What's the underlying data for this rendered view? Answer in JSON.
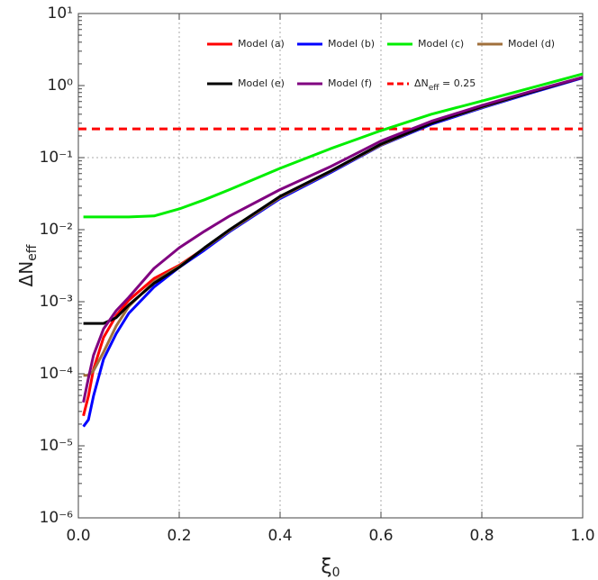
{
  "chart_data": {
    "type": "line",
    "log_y": true,
    "x_label": {
      "main": "ξ",
      "sub": "0"
    },
    "y_label": {
      "main": "ΔN",
      "sub": "eff"
    },
    "xlim": [
      0,
      1
    ],
    "ylim": [
      1e-06,
      10
    ],
    "xticks": [
      {
        "value": 0,
        "label": "0.0"
      },
      0.2,
      0.4,
      0.6,
      0.8,
      {
        "value": 1,
        "label": "1.0"
      }
    ],
    "yticks": [
      {
        "value": 1e-06,
        "label": "10⁻⁶"
      },
      {
        "value": 1e-05,
        "label": "10⁻⁵"
      },
      {
        "value": 0.0001,
        "label": "10⁻⁴"
      },
      {
        "value": 0.001,
        "label": "10⁻³"
      },
      {
        "value": 0.01,
        "label": "10⁻²"
      },
      {
        "value": 0.1,
        "label": "10⁻¹"
      },
      {
        "value": 1,
        "label": "10⁰"
      },
      {
        "value": 10,
        "label": "10¹"
      }
    ],
    "grid_x": [
      0.2,
      0.4,
      0.6,
      0.8
    ],
    "grid_y": [
      0.1,
      0.0001
    ],
    "legend": "top",
    "x": [
      0.01,
      0.02,
      0.03,
      0.05,
      0.075,
      0.1,
      0.15,
      0.2,
      0.25,
      0.3,
      0.4,
      0.5,
      0.6,
      0.7,
      0.8,
      0.9,
      1.0
    ],
    "series": [
      {
        "name": "Model (a)",
        "color": "#ff0000",
        "values": [
          2.6e-05,
          4.9e-05,
          0.000115,
          0.00032,
          0.00064,
          0.00105,
          0.0021,
          0.0032,
          0.0055,
          0.0098,
          0.028,
          0.064,
          0.15,
          0.3,
          0.5,
          0.82,
          1.3
        ]
      },
      {
        "name": "Model (b)",
        "color": "#0000ff",
        "values": [
          1.85e-05,
          2.3e-05,
          4.9e-05,
          0.00016,
          0.00036,
          0.00069,
          0.0016,
          0.003,
          0.0052,
          0.0094,
          0.027,
          0.062,
          0.148,
          0.29,
          0.49,
          0.8,
          1.28
        ]
      },
      {
        "name": "Model (c)",
        "color": "#00ee00",
        "values": [
          0.015,
          0.015,
          0.015,
          0.015,
          0.015,
          0.015,
          0.0155,
          0.0194,
          0.026,
          0.036,
          0.071,
          0.133,
          0.237,
          0.4,
          0.61,
          0.94,
          1.45
        ]
      },
      {
        "name": "Model (d)",
        "color": "#a0703c",
        "values": [
          9.5e-05,
          9.5e-05,
          0.00011,
          0.0002,
          0.00046,
          0.00086,
          0.0019,
          0.0031,
          0.0055,
          0.0097,
          0.028,
          0.064,
          0.15,
          0.3,
          0.5,
          0.82,
          1.3
        ]
      },
      {
        "name": "Model (e)",
        "color": "#000000",
        "values": [
          0.0005,
          0.0005,
          0.0005,
          0.0005,
          0.0006,
          0.0009,
          0.0018,
          0.003,
          0.0056,
          0.01,
          0.029,
          0.065,
          0.154,
          0.3,
          0.51,
          0.82,
          1.3
        ]
      },
      {
        "name": "Model (f)",
        "color": "#800080",
        "values": [
          4e-05,
          8.7e-05,
          0.00018,
          0.00042,
          0.00075,
          0.00115,
          0.0029,
          0.0056,
          0.0095,
          0.0155,
          0.036,
          0.075,
          0.17,
          0.32,
          0.53,
          0.84,
          1.3
        ]
      }
    ],
    "reference_line": {
      "value": 0.25,
      "color": "#ff0000",
      "label_parts": [
        "ΔN",
        "eff",
        " = 0.25"
      ]
    }
  }
}
